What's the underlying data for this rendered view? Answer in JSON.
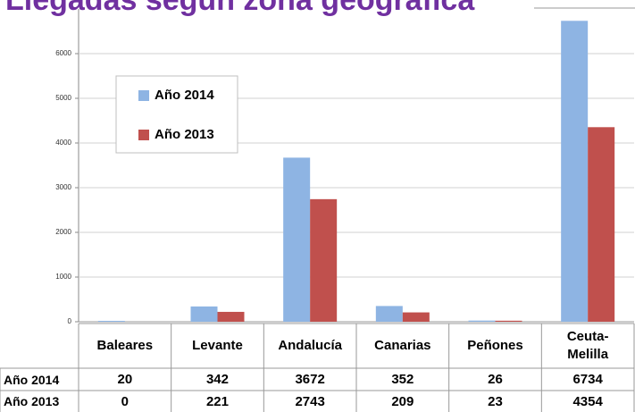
{
  "chart_data": {
    "type": "bar",
    "title": "Llegadas según zona geográfica",
    "categories": [
      "Baleares",
      "Levante",
      "Andalucía",
      "Canarias",
      "Peñones",
      "Ceuta-Melilla"
    ],
    "series": [
      {
        "name": "Año 2014",
        "color": "#8eb4e3",
        "values": [
          20,
          342,
          3672,
          352,
          26,
          6734
        ]
      },
      {
        "name": "Año 2013",
        "color": "#c0504d",
        "values": [
          0,
          221,
          2743,
          209,
          23,
          4354
        ]
      }
    ],
    "ylim": [
      0,
      7000
    ],
    "yticks": [
      0,
      1000,
      2000,
      3000,
      4000,
      5000,
      6000
    ],
    "grid": true
  }
}
